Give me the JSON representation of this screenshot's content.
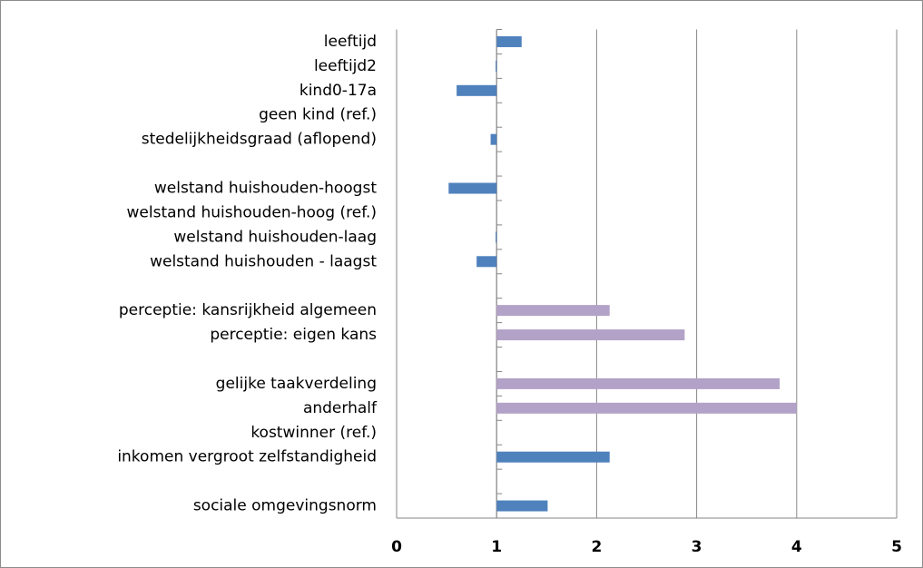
{
  "chart_data": {
    "type": "bar",
    "orientation": "horizontal",
    "categories": [
      "leeftijd",
      "leeftijd2",
      "kind0-17a",
      "geen kind (ref.)",
      "stedelijkheidsgraad (aflopend)",
      null,
      "welstand huishouden-hoogst",
      "welstand huishouden-hoog (ref.)",
      "welstand huishouden-laag",
      "welstand huishouden - laagst",
      null,
      "perceptie: kansrijkheid algemeen",
      "perceptie: eigen kans",
      null,
      "gelijke taakverdeling",
      "anderhalf",
      "kostwinner (ref.)",
      "inkomen vergroot zelfstandigheid",
      null,
      "sociale omgevingsnorm"
    ],
    "values": [
      1.25,
      0.99,
      0.6,
      1,
      0.94,
      null,
      0.52,
      1,
      0.99,
      0.8,
      null,
      2.13,
      2.88,
      null,
      3.83,
      4.0,
      1,
      2.13,
      null,
      1.51
    ],
    "colors": [
      "#4f81bd",
      "#4f81bd",
      "#4f81bd",
      "#4f81bd",
      "#4f81bd",
      null,
      "#4f81bd",
      "#4f81bd",
      "#4f81bd",
      "#4f81bd",
      null,
      "#b3a2c7",
      "#b3a2c7",
      null,
      "#b3a2c7",
      "#b3a2c7",
      "#b3a2c7",
      "#4f81bd",
      null,
      "#4f81bd"
    ],
    "base": 1,
    "xlim": [
      0,
      5
    ],
    "xticks": [
      0,
      1,
      2,
      3,
      4,
      5
    ],
    "grid": true
  }
}
